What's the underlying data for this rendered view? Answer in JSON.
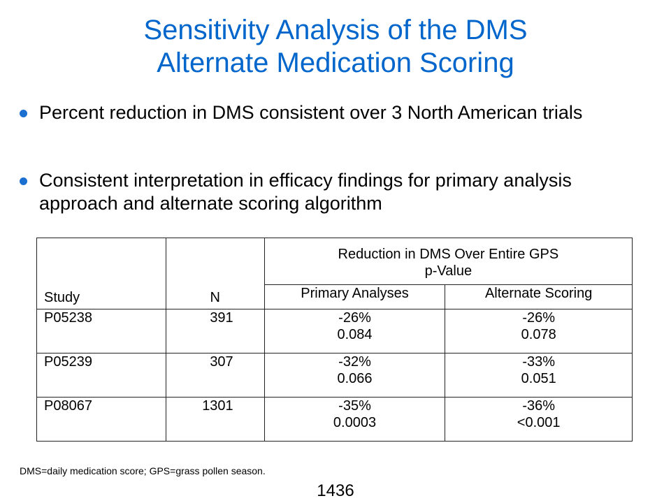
{
  "title": {
    "line1": "Sensitivity Analysis of the DMS",
    "line2": "Alternate Medication Scoring"
  },
  "bullets": [
    "Percent reduction in DMS consistent over 3 North American trials",
    "Consistent interpretation in efficacy findings for primary analysis approach and alternate scoring algorithm"
  ],
  "table": {
    "headers": {
      "study": "Study",
      "n": "N",
      "group_line1": "Reduction in DMS Over Entire GPS",
      "group_line2": "p-Value",
      "primary": "Primary Analyses",
      "alternate": "Alternate Scoring"
    },
    "rows": [
      {
        "study": "P05238",
        "n": "391",
        "primary_pct": "-26%",
        "primary_p": "0.084",
        "alt_pct": "-26%",
        "alt_p": "0.078"
      },
      {
        "study": "P05239",
        "n": "307",
        "primary_pct": "-32%",
        "primary_p": "0.066",
        "alt_pct": "-33%",
        "alt_p": "0.051"
      },
      {
        "study": "P08067",
        "n": "1301",
        "primary_pct": "-35%",
        "primary_p": "0.0003",
        "alt_pct": "-36%",
        "alt_p": "<0.001"
      }
    ]
  },
  "footnote": "DMS=daily medication score; GPS=grass pollen season.",
  "page_number": "1436",
  "colors": {
    "title": "#0066cc",
    "bullet": "#1a6fd1",
    "header_rule": "#2e6fb5"
  }
}
